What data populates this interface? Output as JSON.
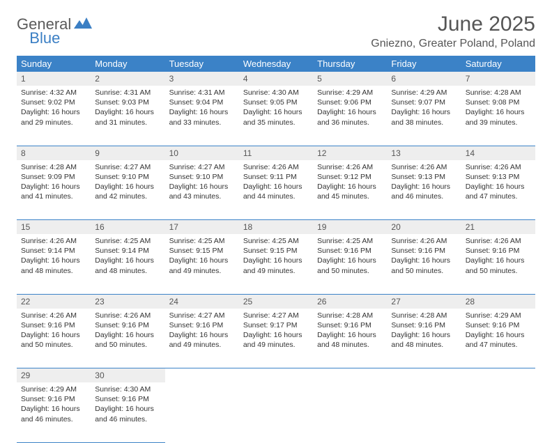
{
  "brand": {
    "word1": "General",
    "word2": "Blue"
  },
  "title": "June 2025",
  "location": "Gniezno, Greater Poland, Poland",
  "colors": {
    "header_bg": "#3b82c7",
    "header_text": "#ffffff",
    "daynum_bg": "#eeeeee",
    "border": "#3b82c7",
    "brand_gray": "#5a5a5a",
    "brand_blue": "#3b7fc4"
  },
  "day_names": [
    "Sunday",
    "Monday",
    "Tuesday",
    "Wednesday",
    "Thursday",
    "Friday",
    "Saturday"
  ],
  "weeks": [
    [
      {
        "n": "1",
        "sr": "4:32 AM",
        "ss": "9:02 PM",
        "dl": "16 hours and 29 minutes."
      },
      {
        "n": "2",
        "sr": "4:31 AM",
        "ss": "9:03 PM",
        "dl": "16 hours and 31 minutes."
      },
      {
        "n": "3",
        "sr": "4:31 AM",
        "ss": "9:04 PM",
        "dl": "16 hours and 33 minutes."
      },
      {
        "n": "4",
        "sr": "4:30 AM",
        "ss": "9:05 PM",
        "dl": "16 hours and 35 minutes."
      },
      {
        "n": "5",
        "sr": "4:29 AM",
        "ss": "9:06 PM",
        "dl": "16 hours and 36 minutes."
      },
      {
        "n": "6",
        "sr": "4:29 AM",
        "ss": "9:07 PM",
        "dl": "16 hours and 38 minutes."
      },
      {
        "n": "7",
        "sr": "4:28 AM",
        "ss": "9:08 PM",
        "dl": "16 hours and 39 minutes."
      }
    ],
    [
      {
        "n": "8",
        "sr": "4:28 AM",
        "ss": "9:09 PM",
        "dl": "16 hours and 41 minutes."
      },
      {
        "n": "9",
        "sr": "4:27 AM",
        "ss": "9:10 PM",
        "dl": "16 hours and 42 minutes."
      },
      {
        "n": "10",
        "sr": "4:27 AM",
        "ss": "9:10 PM",
        "dl": "16 hours and 43 minutes."
      },
      {
        "n": "11",
        "sr": "4:26 AM",
        "ss": "9:11 PM",
        "dl": "16 hours and 44 minutes."
      },
      {
        "n": "12",
        "sr": "4:26 AM",
        "ss": "9:12 PM",
        "dl": "16 hours and 45 minutes."
      },
      {
        "n": "13",
        "sr": "4:26 AM",
        "ss": "9:13 PM",
        "dl": "16 hours and 46 minutes."
      },
      {
        "n": "14",
        "sr": "4:26 AM",
        "ss": "9:13 PM",
        "dl": "16 hours and 47 minutes."
      }
    ],
    [
      {
        "n": "15",
        "sr": "4:26 AM",
        "ss": "9:14 PM",
        "dl": "16 hours and 48 minutes."
      },
      {
        "n": "16",
        "sr": "4:25 AM",
        "ss": "9:14 PM",
        "dl": "16 hours and 48 minutes."
      },
      {
        "n": "17",
        "sr": "4:25 AM",
        "ss": "9:15 PM",
        "dl": "16 hours and 49 minutes."
      },
      {
        "n": "18",
        "sr": "4:25 AM",
        "ss": "9:15 PM",
        "dl": "16 hours and 49 minutes."
      },
      {
        "n": "19",
        "sr": "4:25 AM",
        "ss": "9:16 PM",
        "dl": "16 hours and 50 minutes."
      },
      {
        "n": "20",
        "sr": "4:26 AM",
        "ss": "9:16 PM",
        "dl": "16 hours and 50 minutes."
      },
      {
        "n": "21",
        "sr": "4:26 AM",
        "ss": "9:16 PM",
        "dl": "16 hours and 50 minutes."
      }
    ],
    [
      {
        "n": "22",
        "sr": "4:26 AM",
        "ss": "9:16 PM",
        "dl": "16 hours and 50 minutes."
      },
      {
        "n": "23",
        "sr": "4:26 AM",
        "ss": "9:16 PM",
        "dl": "16 hours and 50 minutes."
      },
      {
        "n": "24",
        "sr": "4:27 AM",
        "ss": "9:16 PM",
        "dl": "16 hours and 49 minutes."
      },
      {
        "n": "25",
        "sr": "4:27 AM",
        "ss": "9:17 PM",
        "dl": "16 hours and 49 minutes."
      },
      {
        "n": "26",
        "sr": "4:28 AM",
        "ss": "9:16 PM",
        "dl": "16 hours and 48 minutes."
      },
      {
        "n": "27",
        "sr": "4:28 AM",
        "ss": "9:16 PM",
        "dl": "16 hours and 48 minutes."
      },
      {
        "n": "28",
        "sr": "4:29 AM",
        "ss": "9:16 PM",
        "dl": "16 hours and 47 minutes."
      }
    ],
    [
      {
        "n": "29",
        "sr": "4:29 AM",
        "ss": "9:16 PM",
        "dl": "16 hours and 46 minutes."
      },
      {
        "n": "30",
        "sr": "4:30 AM",
        "ss": "9:16 PM",
        "dl": "16 hours and 46 minutes."
      },
      null,
      null,
      null,
      null,
      null
    ]
  ],
  "labels": {
    "sunrise": "Sunrise:",
    "sunset": "Sunset:",
    "daylight": "Daylight:"
  }
}
